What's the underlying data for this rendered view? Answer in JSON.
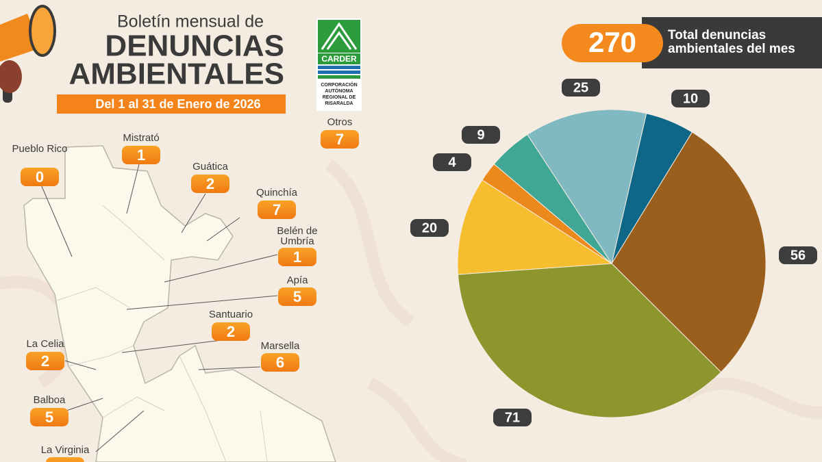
{
  "header": {
    "subtitle": "Boletín mensual de",
    "title_line1": "DENUNCIAS",
    "title_line2": "AMBIENTALES",
    "period": "Del 1 al 31 de Enero de 2026"
  },
  "logo": {
    "name": "CARDER",
    "line1": "CORPORACIÓN",
    "line2": "AUTÓNOMA",
    "line3": "REGIONAL DE",
    "line4": "RISARALDA"
  },
  "total": {
    "value": 270,
    "label_line1": "Total denuncias",
    "label_line2": "ambientales del mes"
  },
  "map": {
    "municipalities": [
      {
        "name": "Pueblo Rico",
        "value": 0
      },
      {
        "name": "Mistrató",
        "value": 1
      },
      {
        "name": "Guática",
        "value": 2
      },
      {
        "name": "Quinchía",
        "value": 7
      },
      {
        "name": "Belén de Umbría",
        "value": 1
      },
      {
        "name": "Apía",
        "value": 5
      },
      {
        "name": "Santuario",
        "value": 2
      },
      {
        "name": "Marsella",
        "value": 6
      },
      {
        "name": "La Celia",
        "value": 2
      },
      {
        "name": "Balboa",
        "value": 5
      },
      {
        "name": "La Virginia"
      },
      {
        "name": "Otros",
        "value": 7
      }
    ]
  },
  "chart_data": {
    "type": "pie",
    "values": [
      10,
      56,
      71,
      20,
      4,
      9,
      25
    ],
    "colors": [
      "#0f6788",
      "#9a5f1c",
      "#8c962c",
      "#f6bd2e",
      "#ec891c",
      "#40a795",
      "#80b9c1"
    ]
  }
}
